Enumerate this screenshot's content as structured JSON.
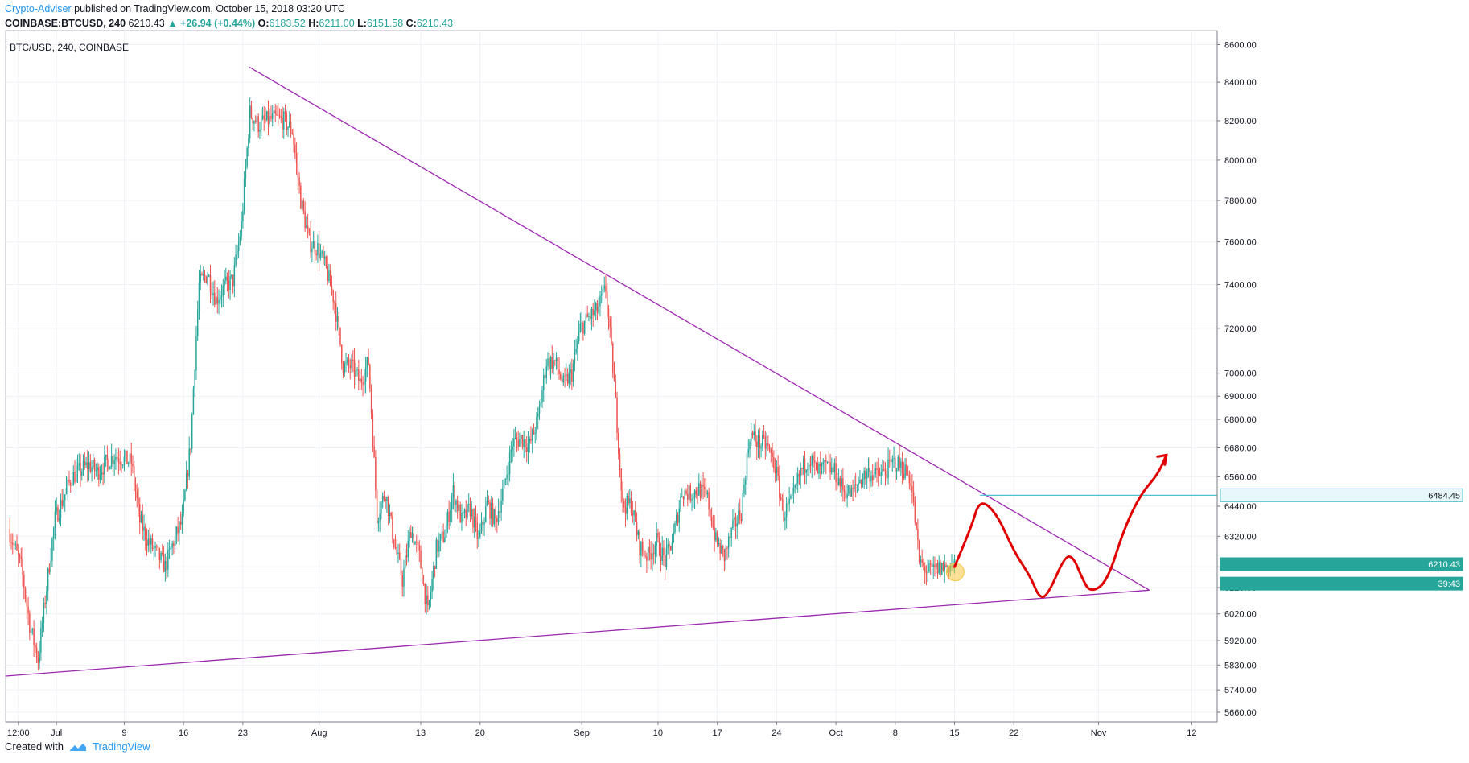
{
  "header": {
    "author": "Crypto-Adviser",
    "published": "published on TradingView.com, October 15, 2018 03:20 UTC"
  },
  "symbol_bar": {
    "symbol": "COINBASE:BTCUSD, 240",
    "last": "6210.43",
    "change": "▲ +26.94 (+0.44%)",
    "o_label": "O:",
    "o": "6183.52",
    "h_label": "H:",
    "h": "6211.00",
    "l_label": "L:",
    "l": "6151.58",
    "c_label": "C:",
    "c": "6210.43"
  },
  "chart_data": {
    "type": "candlestick",
    "title": "BTC/USD, 240, COINBASE",
    "y_scale": "log",
    "ylim": [
      5660,
      8650
    ],
    "y_ticks": [
      "8600.00",
      "8400.00",
      "8200.00",
      "8000.00",
      "7800.00",
      "7600.00",
      "7400.00",
      "7200.00",
      "7000.00",
      "6900.00",
      "6800.00",
      "6680.00",
      "6560.00",
      "6440.00",
      "6320.00",
      "6200.00",
      "6120.00",
      "6020.00",
      "5920.00",
      "5830.00",
      "5740.00",
      "5660.00"
    ],
    "x_ticks": [
      "12:00",
      "Jul",
      "9",
      "16",
      "23",
      "Aug",
      "13",
      "20",
      "Sep",
      "10",
      "17",
      "24",
      "Oct",
      "8",
      "15",
      "22",
      "Nov",
      "12"
    ],
    "x_domain_days": [
      "2018-06-25",
      "2018-11-15"
    ],
    "price_path": [
      [
        "2018-06-25T12:00",
        6350
      ],
      [
        "2018-06-27",
        6200
      ],
      [
        "2018-06-28",
        5980
      ],
      [
        "2018-06-29",
        5850
      ],
      [
        "2018-06-30",
        6120
      ],
      [
        "2018-07-01",
        6390
      ],
      [
        "2018-07-03",
        6560
      ],
      [
        "2018-07-05",
        6610
      ],
      [
        "2018-07-06",
        6580
      ],
      [
        "2018-07-08",
        6650
      ],
      [
        "2018-07-10",
        6620
      ],
      [
        "2018-07-11",
        6380
      ],
      [
        "2018-07-12",
        6300
      ],
      [
        "2018-07-14",
        6200
      ],
      [
        "2018-07-15",
        6300
      ],
      [
        "2018-07-16",
        6380
      ],
      [
        "2018-07-17",
        6700
      ],
      [
        "2018-07-18",
        7400
      ],
      [
        "2018-07-19",
        7450
      ],
      [
        "2018-07-20",
        7330
      ],
      [
        "2018-07-21",
        7390
      ],
      [
        "2018-07-22",
        7420
      ],
      [
        "2018-07-23",
        7680
      ],
      [
        "2018-07-24",
        8240
      ],
      [
        "2018-07-25",
        8180
      ],
      [
        "2018-07-26",
        8200
      ],
      [
        "2018-07-27",
        8210
      ],
      [
        "2018-07-28",
        8200
      ],
      [
        "2018-07-29",
        8150
      ],
      [
        "2018-07-30",
        7800
      ],
      [
        "2018-07-31",
        7600
      ],
      [
        "2018-08-01",
        7570
      ],
      [
        "2018-08-02",
        7470
      ],
      [
        "2018-08-03",
        7320
      ],
      [
        "2018-08-04",
        7030
      ],
      [
        "2018-08-05",
        7030
      ],
      [
        "2018-08-06",
        6960
      ],
      [
        "2018-08-07",
        7050
      ],
      [
        "2018-08-08",
        6400
      ],
      [
        "2018-08-09",
        6500
      ],
      [
        "2018-08-10",
        6300
      ],
      [
        "2018-08-11",
        6150
      ],
      [
        "2018-08-12",
        6350
      ],
      [
        "2018-08-13",
        6240
      ],
      [
        "2018-08-14",
        6020
      ],
      [
        "2018-08-15",
        6270
      ],
      [
        "2018-08-16",
        6330
      ],
      [
        "2018-08-17",
        6500
      ],
      [
        "2018-08-18",
        6380
      ],
      [
        "2018-08-19",
        6430
      ],
      [
        "2018-08-20",
        6300
      ],
      [
        "2018-08-21",
        6450
      ],
      [
        "2018-08-22",
        6380
      ],
      [
        "2018-08-23",
        6520
      ],
      [
        "2018-08-24",
        6700
      ],
      [
        "2018-08-25",
        6720
      ],
      [
        "2018-08-26",
        6690
      ],
      [
        "2018-08-27",
        6800
      ],
      [
        "2018-08-28",
        7050
      ],
      [
        "2018-08-29",
        7050
      ],
      [
        "2018-08-30",
        6950
      ],
      [
        "2018-08-31",
        7000
      ],
      [
        "2018-09-01",
        7200
      ],
      [
        "2018-09-02",
        7250
      ],
      [
        "2018-09-03",
        7280
      ],
      [
        "2018-09-04",
        7380
      ],
      [
        "2018-09-05",
        6950
      ],
      [
        "2018-09-06",
        6440
      ],
      [
        "2018-09-07",
        6450
      ],
      [
        "2018-09-08",
        6280
      ],
      [
        "2018-09-09",
        6240
      ],
      [
        "2018-09-10",
        6300
      ],
      [
        "2018-09-11",
        6220
      ],
      [
        "2018-09-12",
        6320
      ],
      [
        "2018-09-13",
        6500
      ],
      [
        "2018-09-14",
        6490
      ],
      [
        "2018-09-15",
        6510
      ],
      [
        "2018-09-16",
        6470
      ],
      [
        "2018-09-17",
        6300
      ],
      [
        "2018-09-18",
        6240
      ],
      [
        "2018-09-19",
        6350
      ],
      [
        "2018-09-20",
        6420
      ],
      [
        "2018-09-21",
        6740
      ],
      [
        "2018-09-22",
        6700
      ],
      [
        "2018-09-23",
        6690
      ],
      [
        "2018-09-24",
        6600
      ],
      [
        "2018-09-25",
        6410
      ],
      [
        "2018-09-26",
        6460
      ],
      [
        "2018-09-27",
        6580
      ],
      [
        "2018-09-28",
        6640
      ],
      [
        "2018-09-29",
        6580
      ],
      [
        "2018-09-30",
        6600
      ],
      [
        "2018-10-01",
        6580
      ],
      [
        "2018-10-02",
        6510
      ],
      [
        "2018-10-03",
        6490
      ],
      [
        "2018-10-04",
        6550
      ],
      [
        "2018-10-05",
        6580
      ],
      [
        "2018-10-06",
        6560
      ],
      [
        "2018-10-07",
        6580
      ],
      [
        "2018-10-08",
        6620
      ],
      [
        "2018-10-09",
        6600
      ],
      [
        "2018-10-10",
        6550
      ],
      [
        "2018-10-11",
        6220
      ],
      [
        "2018-10-12",
        6180
      ],
      [
        "2018-10-13",
        6190
      ],
      [
        "2018-10-14",
        6200
      ],
      [
        "2018-10-15T03:20",
        6210.43
      ]
    ],
    "trendlines": [
      {
        "name": "descending resistance",
        "color": "#9c27b0",
        "points": [
          [
            "2018-07-23T18:00",
            8480
          ],
          [
            "2018-11-07",
            6110
          ]
        ]
      },
      {
        "name": "ascending support",
        "color": "#9c27b0",
        "points": [
          [
            "2018-06-25",
            5790
          ],
          [
            "2018-11-07",
            6110
          ]
        ]
      }
    ],
    "level_line": {
      "value": "6484.45",
      "color": "#4ec2d1",
      "from": "2018-10-18"
    },
    "projection_path": {
      "color": "#e00000",
      "points": [
        [
          "2018-10-15",
          6200
        ],
        [
          "2018-10-17",
          6360
        ],
        [
          "2018-10-18",
          6470
        ],
        [
          "2018-10-20",
          6410
        ],
        [
          "2018-10-22",
          6260
        ],
        [
          "2018-10-24",
          6160
        ],
        [
          "2018-10-25",
          6080
        ],
        [
          "2018-10-26",
          6090
        ],
        [
          "2018-10-28",
          6240
        ],
        [
          "2018-10-29",
          6240
        ],
        [
          "2018-10-30",
          6160
        ],
        [
          "2018-10-31",
          6100
        ],
        [
          "2018-11-02",
          6140
        ],
        [
          "2018-11-04",
          6350
        ],
        [
          "2018-11-06",
          6490
        ],
        [
          "2018-11-08",
          6570
        ],
        [
          "2018-11-09",
          6650
        ]
      ]
    },
    "highlight_point": {
      "date": "2018-10-15T02:00",
      "value": 6180,
      "color": "#f7c843"
    },
    "price_labels": [
      {
        "text": "6484.45",
        "value": 6484.45,
        "bg": "#e8f7f9",
        "fg": "#131722"
      },
      {
        "text": "6210.43",
        "value": 6210.43,
        "bg": "#26a69a",
        "fg": "#ffffff"
      },
      {
        "text": "39:43",
        "value": 6160,
        "bg": "#26a69a",
        "fg": "#ffffff"
      }
    ],
    "up_color": "#26a69a",
    "down_color": "#ef5350",
    "grid": true
  },
  "footer": {
    "created_with": "Created with",
    "brand": "TradingView"
  }
}
